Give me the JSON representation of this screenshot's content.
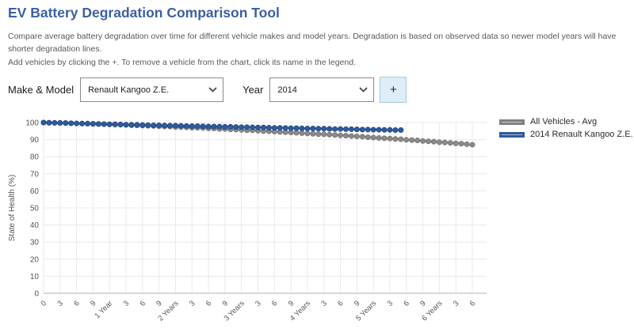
{
  "header": {
    "title": "EV Battery Degradation Comparison Tool"
  },
  "description": "Compare average battery degradation over time for different vehicle makes and model years. Degradation is based on observed data so newer model years will have shorter degradation lines.",
  "instructions": "Add vehicles by clicking the +. To remove a vehicle from the chart, click its name in the legend.",
  "form": {
    "make_model_label": "Make & Model",
    "make_model_value": "Renault Kangoo Z.E.",
    "year_label": "Year",
    "year_value": "2014",
    "add_button_label": "+"
  },
  "colors": {
    "title_blue": "#3b5fa3",
    "body_text": "#595959",
    "grid_line": "#e9e9e9",
    "axis_line": "#b3b3b3",
    "tick_text": "#555555",
    "add_button_bg": "#ddeef8"
  },
  "chart_data": {
    "type": "line",
    "title": "",
    "xlabel": "",
    "ylabel": "State of Health (%)",
    "x_unit": "months",
    "x_tick_interval_months": 3,
    "x_tick_labels": [
      "0",
      "3",
      "6",
      "9",
      "1 Year",
      "3",
      "6",
      "9",
      "2 Years",
      "3",
      "6",
      "9",
      "3 Years",
      "3",
      "6",
      "9",
      "4 Years",
      "3",
      "6",
      "9",
      "5 Years",
      "3",
      "6",
      "9",
      "6 Years",
      "3",
      "6"
    ],
    "y_ticks": [
      0,
      10,
      20,
      30,
      40,
      50,
      60,
      70,
      80,
      90,
      100
    ],
    "ylim": [
      0,
      100
    ],
    "xlim_months": [
      0,
      81
    ],
    "grid": true,
    "legend_position": "right",
    "series": [
      {
        "name": "All Vehicles - Avg",
        "start_month": 0,
        "values": [
          100,
          99.9,
          99.8,
          99.7,
          99.7,
          99.6,
          99.5,
          99.4,
          99.3,
          99.2,
          99.1,
          99,
          98.9,
          98.8,
          98.7,
          98.6,
          98.4,
          98.3,
          98.2,
          98.1,
          98,
          97.8,
          97.7,
          97.6,
          97.4,
          97.3,
          97.2,
          97,
          96.9,
          96.8,
          96.6,
          96.5,
          96.3,
          96.2,
          96,
          95.9,
          95.7,
          95.5,
          95.4,
          95.2,
          95,
          94.9,
          94.7,
          94.5,
          94.3,
          94.2,
          94,
          93.8,
          93.6,
          93.4,
          93.2,
          93.1,
          92.9,
          92.7,
          92.5,
          92.3,
          92.1,
          91.9,
          91.7,
          91.4,
          91.2,
          91,
          90.8,
          90.6,
          90.4,
          90.2,
          89.9,
          89.7,
          89.5,
          89.2,
          89,
          88.8,
          88.5,
          88.3,
          88.1,
          87.8,
          87.6,
          87.3,
          87
        ],
        "line_color": "#8b8b8b",
        "dot_color": "#8b8b8b",
        "dot_stroke": "#6e6e6e",
        "legend_fill": "#c6c6c6",
        "legend_border": "#7f7f7f"
      },
      {
        "name": "2014 Renault Kangoo Z.E.",
        "start_month": 0,
        "values": [
          100,
          99.9,
          99.8,
          99.8,
          99.7,
          99.6,
          99.5,
          99.4,
          99.4,
          99.3,
          99.2,
          99.1,
          99,
          99,
          98.9,
          98.8,
          98.7,
          98.7,
          98.6,
          98.5,
          98.4,
          98.4,
          98.3,
          98.2,
          98.2,
          98.1,
          98,
          97.9,
          97.9,
          97.8,
          97.7,
          97.7,
          97.6,
          97.5,
          97.5,
          97.4,
          97.3,
          97.3,
          97.2,
          97.1,
          97.1,
          97,
          96.9,
          96.9,
          96.8,
          96.7,
          96.7,
          96.6,
          96.5,
          96.5,
          96.4,
          96.4,
          96.3,
          96.2,
          96.2,
          96.1,
          96.1,
          96,
          95.9,
          95.9,
          95.8,
          95.8,
          95.7,
          95.7,
          95.6,
          95.6
        ],
        "line_color": "#2f5b9d",
        "dot_color": "#2f5b9d",
        "dot_stroke": "#1f4480",
        "legend_fill": "#9fb6d9",
        "legend_border": "#2f5b9d"
      }
    ]
  }
}
